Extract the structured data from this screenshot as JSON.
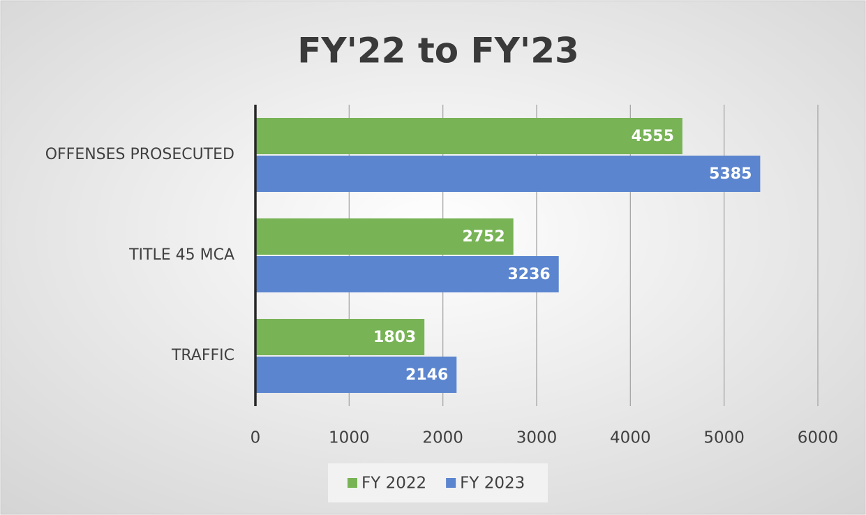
{
  "chart_data": {
    "type": "bar",
    "orientation": "horizontal",
    "title": "FY'22 to FY'23",
    "categories": [
      "OFFENSES PROSECUTED",
      "TITLE 45 MCA",
      "TRAFFIC"
    ],
    "series": [
      {
        "name": "FY 2022",
        "color": "#78b356",
        "values": [
          4555,
          2752,
          1803
        ]
      },
      {
        "name": "FY 2023",
        "color": "#5b85cf",
        "values": [
          5385,
          3236,
          2146
        ]
      }
    ],
    "xlim": [
      0,
      6000
    ],
    "xticks": [
      0,
      1000,
      2000,
      3000,
      4000,
      5000,
      6000
    ],
    "grid": true,
    "legend": "bottom"
  }
}
